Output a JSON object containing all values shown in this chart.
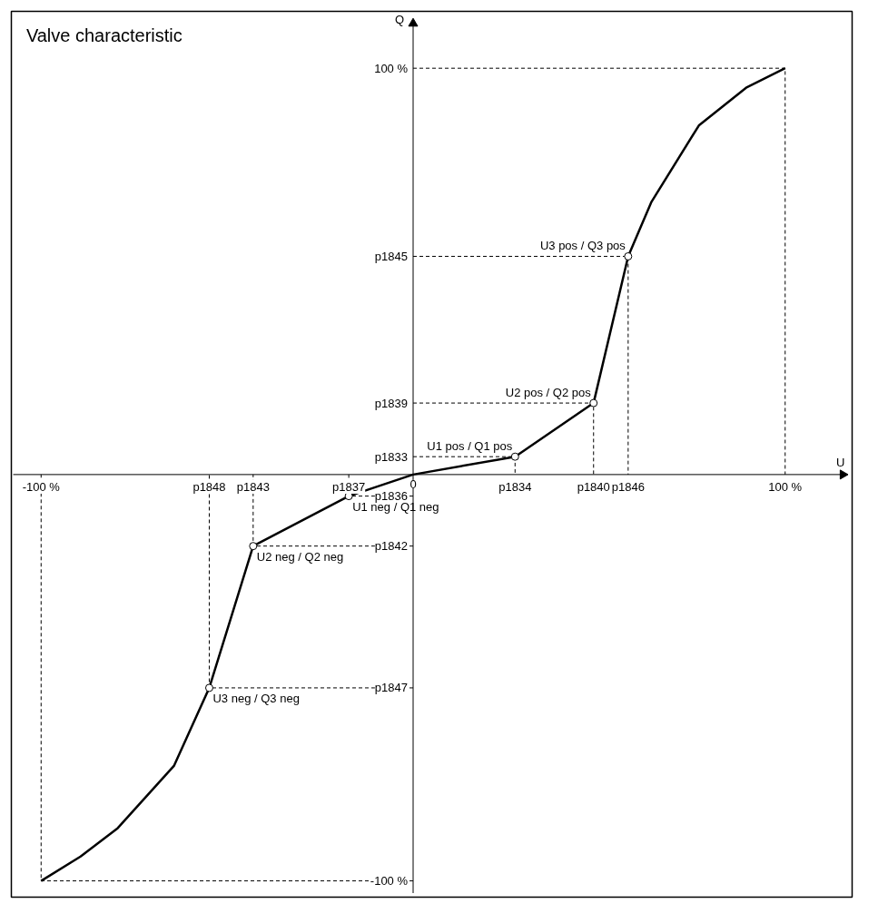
{
  "chart_data": {
    "type": "line",
    "title": "Valve characteristic",
    "xlabel": "U",
    "ylabel": "Q",
    "xlim": [
      -108,
      118
    ],
    "ylim": [
      -104,
      114
    ],
    "xticks": [
      {
        "value": -100,
        "label": "-100 %"
      },
      {
        "value": -54.8,
        "label": "p1848"
      },
      {
        "value": -43.0,
        "label": "p1843"
      },
      {
        "value": -17.3,
        "label": "p1837"
      },
      {
        "value": 0,
        "label": "0"
      },
      {
        "value": 27.4,
        "label": "p1834"
      },
      {
        "value": 48.5,
        "label": "p1840"
      },
      {
        "value": 57.8,
        "label": "p1846"
      },
      {
        "value": 100,
        "label": "100 %"
      }
    ],
    "yticks": [
      {
        "value": -100,
        "label": "-100 %"
      },
      {
        "value": -52.5,
        "label": "p1847"
      },
      {
        "value": -17.6,
        "label": "p1842"
      },
      {
        "value": -5.3,
        "label": "p1836"
      },
      {
        "value": 4.4,
        "label": "p1833"
      },
      {
        "value": 17.6,
        "label": "p1839"
      },
      {
        "value": 53.7,
        "label": "p1845"
      },
      {
        "value": 100,
        "label": "100 %"
      }
    ],
    "series": [
      {
        "color": "#000000",
        "x": [
          -100,
          -89.4,
          -79.4,
          -64.3,
          -54.8,
          -43.0,
          -17.3,
          0,
          27.4,
          48.5,
          57.8,
          64,
          76.8,
          89.5,
          100
        ],
        "values": [
          -100,
          -94,
          -87,
          -71.7,
          -52.5,
          -17.6,
          -5.3,
          0,
          4.4,
          17.6,
          53.7,
          67,
          85.9,
          95.2,
          100
        ]
      },
      {
        "type": "scatter",
        "color": "#000000",
        "marker": "circle",
        "x": [
          -54.8,
          -43.0,
          -17.3,
          27.4,
          48.5,
          57.8
        ],
        "values": [
          -52.5,
          -17.6,
          -5.3,
          4.4,
          17.6,
          53.7
        ]
      },
      {
        "type": "line",
        "line_style": "dashed",
        "color": "#000000",
        "x": [
          0,
          100,
          100
        ],
        "values": [
          100,
          100,
          0
        ]
      },
      {
        "type": "line",
        "line_style": "dashed",
        "color": "#000000",
        "x": [
          0,
          -100,
          -100
        ],
        "values": [
          -100,
          -100,
          0
        ]
      },
      {
        "type": "line",
        "line_style": "dashed",
        "color": "#000000",
        "x": [
          0,
          -54.8,
          -54.8
        ],
        "values": [
          -52.5,
          -52.5,
          0
        ]
      },
      {
        "type": "line",
        "line_style": "dashed",
        "color": "#000000",
        "x": [
          0,
          -43.0,
          -43.0
        ],
        "values": [
          -17.6,
          -17.6,
          0
        ]
      },
      {
        "type": "line",
        "line_style": "dashed",
        "color": "#000000",
        "x": [
          0,
          -17.3,
          -17.3
        ],
        "values": [
          -5.3,
          -5.3,
          0
        ]
      },
      {
        "type": "line",
        "line_style": "dashed",
        "color": "#000000",
        "x": [
          0,
          27.4,
          27.4
        ],
        "values": [
          4.4,
          4.4,
          0
        ]
      },
      {
        "type": "line",
        "line_style": "dashed",
        "color": "#000000",
        "x": [
          0,
          48.5,
          48.5
        ],
        "values": [
          17.6,
          17.6,
          0
        ]
      },
      {
        "type": "line",
        "line_style": "dashed",
        "color": "#000000",
        "x": [
          0,
          57.8,
          57.8
        ],
        "values": [
          53.7,
          53.7,
          0
        ]
      }
    ],
    "annotations": [
      {
        "text": "U3 neg / Q3 neg",
        "x": -54.8,
        "y": -52.5
      },
      {
        "text": "U2 neg / Q2 neg",
        "x": -43.0,
        "y": -17.6
      },
      {
        "text": "U1 neg / Q1 neg",
        "x": -17.3,
        "y": -5.3
      },
      {
        "text": "U1 pos / Q1 pos",
        "x": 27.4,
        "y": 4.4
      },
      {
        "text": "U2 pos / Q2 pos",
        "x": 48.5,
        "y": 17.6
      },
      {
        "text": "U3 pos / Q3 pos",
        "x": 57.8,
        "y": 53.7
      }
    ],
    "grid": false
  }
}
